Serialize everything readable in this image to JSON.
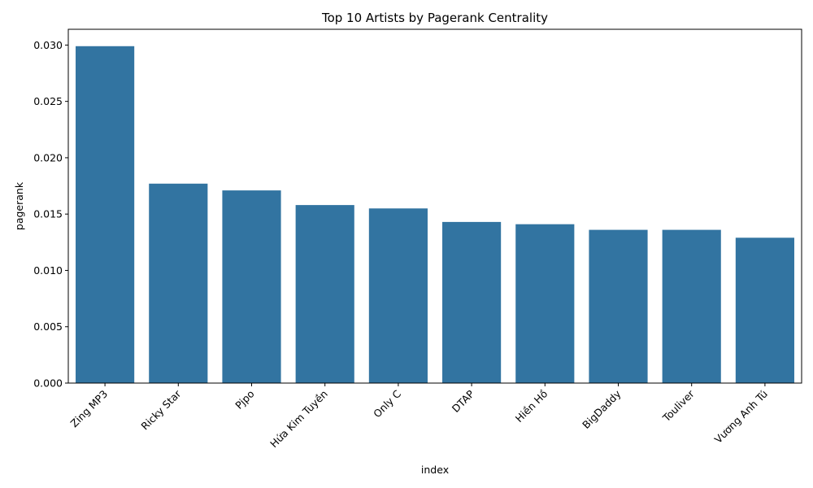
{
  "chart_data": {
    "type": "bar",
    "title": "Top 10 Artists by Pagerank Centrality",
    "xlabel": "index",
    "ylabel": "pagerank",
    "categories": [
      "Zing MP3",
      "Ricky Star",
      "Pjpo",
      "Hứa Kim Tuyền",
      "Only C",
      "DTAP",
      "Hiền Hồ",
      "BigDaddy",
      "Touliver",
      "Vương Anh Tú"
    ],
    "values": [
      0.0299,
      0.0177,
      0.0171,
      0.0158,
      0.0155,
      0.0143,
      0.0141,
      0.0136,
      0.0136,
      0.0129
    ],
    "ylim": [
      0,
      0.0314
    ],
    "yticks": [
      "0.000",
      "0.005",
      "0.010",
      "0.015",
      "0.020",
      "0.025",
      "0.030"
    ],
    "ytick_values": [
      0,
      0.005,
      0.01,
      0.015,
      0.02,
      0.025,
      0.03
    ],
    "bar_color": "#3274a1",
    "grid": false,
    "legend": "none"
  }
}
